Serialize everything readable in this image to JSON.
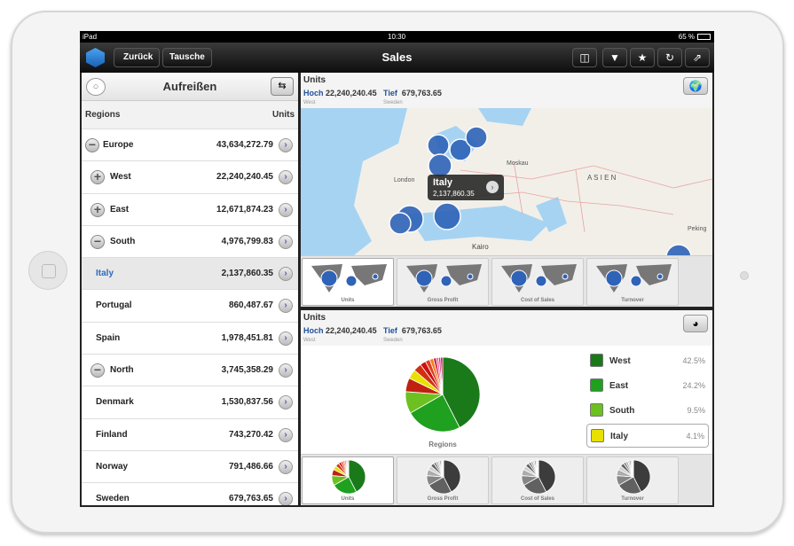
{
  "status": {
    "device": "iPad",
    "time": "10:30",
    "battery": "65 %"
  },
  "nav": {
    "back": "Zurück",
    "swap": "Tausche",
    "title": "Sales",
    "icons": [
      "layout-icon",
      "filter-icon",
      "star-icon",
      "refresh-icon",
      "share-icon"
    ]
  },
  "left": {
    "title": "Aufreißen",
    "col_region": "Regions",
    "col_units": "Units",
    "rows": [
      {
        "label": "Europe",
        "value": "43,634,272.79",
        "toggle": "−",
        "level": 0
      },
      {
        "label": "West",
        "value": "22,240,240.45",
        "toggle": "+",
        "level": 1
      },
      {
        "label": "East",
        "value": "12,671,874.23",
        "toggle": "+",
        "level": 1
      },
      {
        "label": "South",
        "value": "4,976,799.83",
        "toggle": "−",
        "level": 1
      },
      {
        "label": "Italy",
        "value": "2,137,860.35",
        "toggle": "",
        "level": 2,
        "selected": true
      },
      {
        "label": "Portugal",
        "value": "860,487.67",
        "toggle": "",
        "level": 2
      },
      {
        "label": "Spain",
        "value": "1,978,451.81",
        "toggle": "",
        "level": 2
      },
      {
        "label": "North",
        "value": "3,745,358.29",
        "toggle": "−",
        "level": 1
      },
      {
        "label": "Denmark",
        "value": "1,530,837.56",
        "toggle": "",
        "level": 2
      },
      {
        "label": "Finland",
        "value": "743,270.42",
        "toggle": "",
        "level": 2
      },
      {
        "label": "Norway",
        "value": "791,486.66",
        "toggle": "",
        "level": 2
      },
      {
        "label": "Sweden",
        "value": "679,763.65",
        "toggle": "",
        "level": 2
      }
    ]
  },
  "map": {
    "measure": "Units",
    "high_label": "Hoch",
    "high_value": "22,240,240.45",
    "high_sub": "West",
    "low_label": "Tief",
    "low_value": "679,763.65",
    "low_sub": "Sweden",
    "places": {
      "london": "London",
      "moskau": "Moskau",
      "asien": "A S I E N",
      "kairo": "Kairo",
      "peking": "Peking"
    },
    "callout": {
      "title": "Italy",
      "value": "2,137,860.35"
    },
    "thumbs": [
      "Units",
      "Gross Profit",
      "Cost of Sales",
      "Turnover"
    ]
  },
  "pie": {
    "measure": "Units",
    "high_label": "Hoch",
    "high_value": "22,240,240.45",
    "high_sub": "West",
    "low_label": "Tief",
    "low_value": "679,763.65",
    "low_sub": "Sweden",
    "caption": "Regions",
    "legend": [
      {
        "label": "West",
        "pct": "42.5%",
        "color": "#1a7a1a"
      },
      {
        "label": "East",
        "pct": "24.2%",
        "color": "#1fa01f"
      },
      {
        "label": "South",
        "pct": "9.5%",
        "color": "#6cc020"
      },
      {
        "label": "Italy",
        "pct": "4.1%",
        "color": "#e8e000",
        "selected": true
      }
    ],
    "slices": [
      42.5,
      24.2,
      9.5,
      6.0,
      4.1,
      3.5,
      2.5,
      2.0,
      1.6,
      1.3,
      1.0,
      0.9,
      0.9
    ],
    "slice_colors": [
      "#1a7a1a",
      "#1fa01f",
      "#6cc020",
      "#c02010",
      "#e8e000",
      "#d03010",
      "#cc1010",
      "#e04020",
      "#f08020",
      "#d02040",
      "#f060a0",
      "#e03070",
      "#a01040"
    ],
    "thumbs": [
      "Units",
      "Gross Profit",
      "Cost of Sales",
      "Turnover"
    ]
  }
}
